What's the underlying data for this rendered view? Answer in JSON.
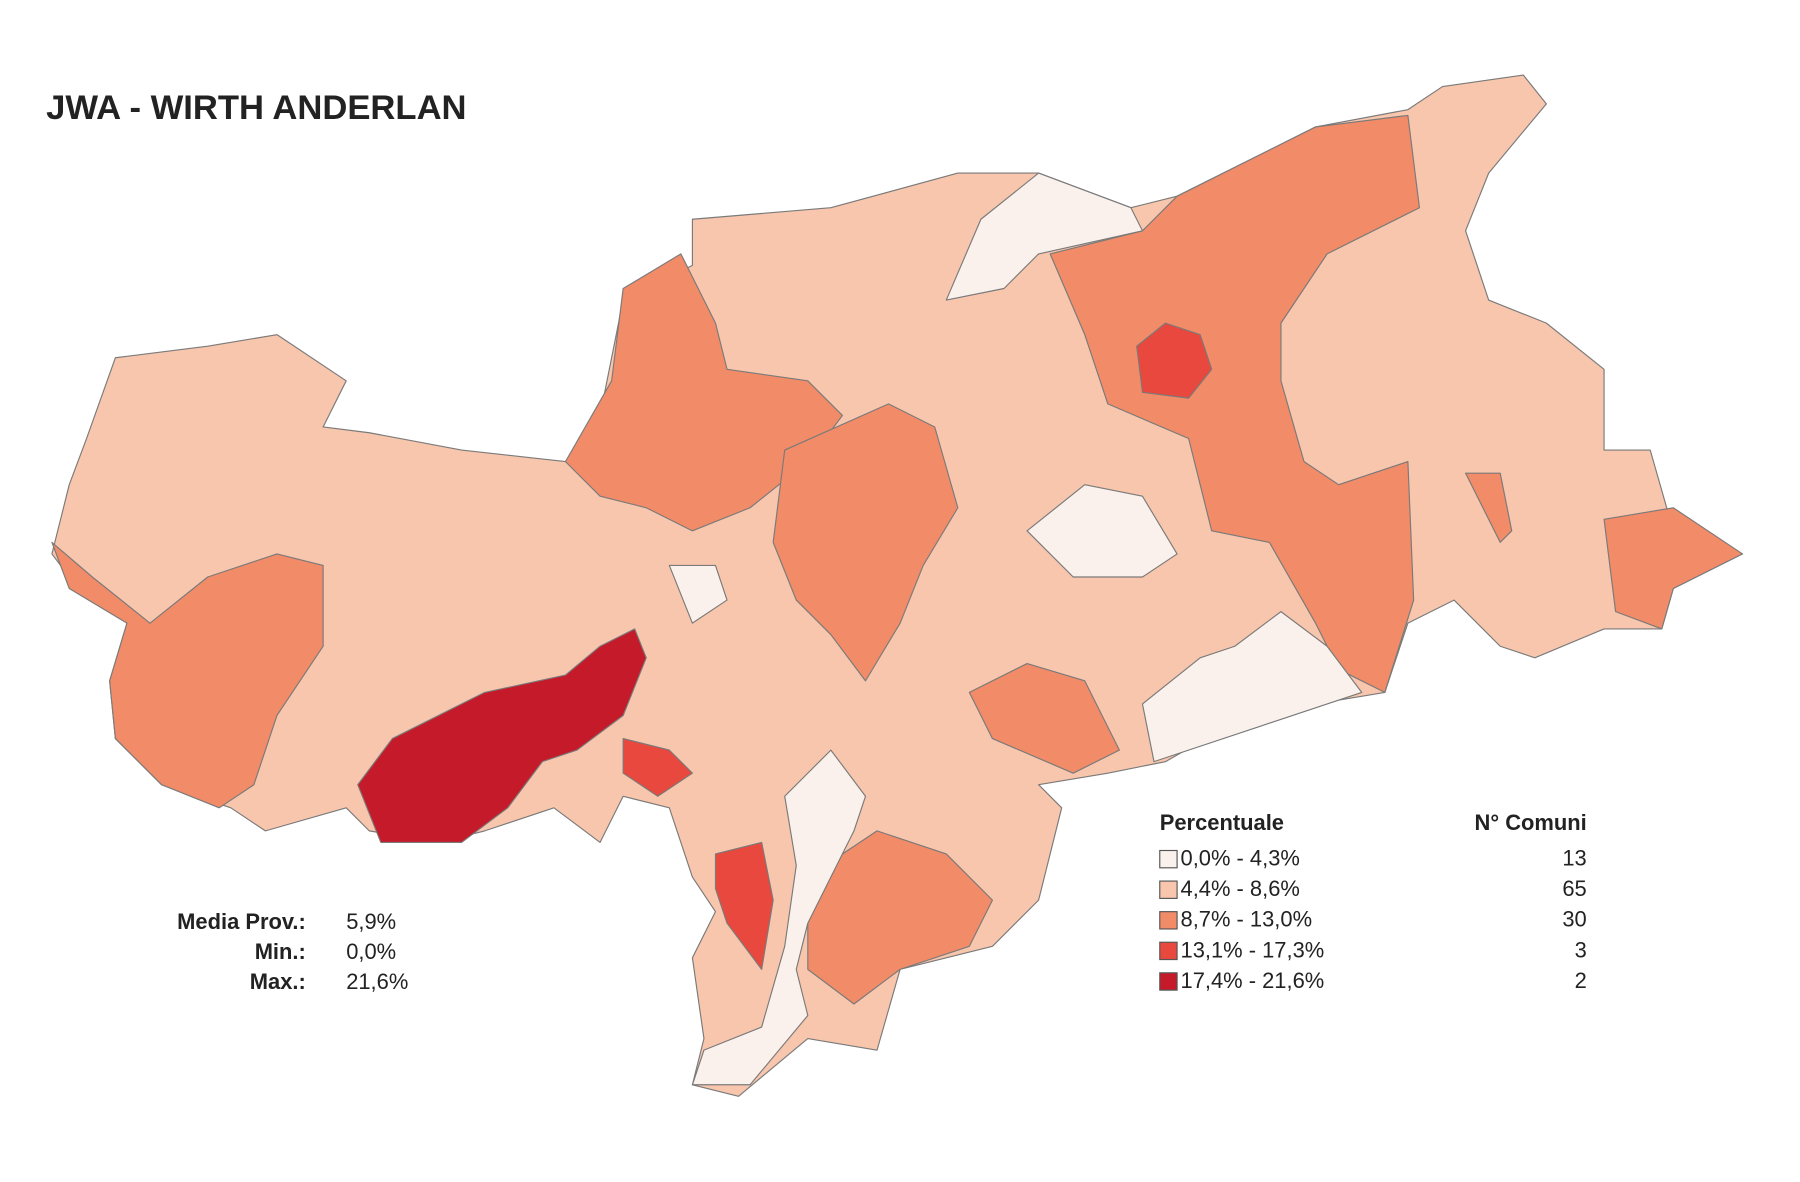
{
  "title": "JWA - WIRTH ANDERLAN",
  "stats": [
    {
      "label": "Media Prov.:",
      "value": "5,9%"
    },
    {
      "label": "Min.:",
      "value": "0,0%"
    },
    {
      "label": "Max.:",
      "value": "21,6%"
    }
  ],
  "legend": {
    "title": "Percentuale",
    "count_title": "N° Comuni",
    "classes": [
      {
        "label": "0,0% - 4,3%",
        "count": 13,
        "color": "#fbf1ec"
      },
      {
        "label": "4,4% - 8,6%",
        "count": 65,
        "color": "#f8c6ad"
      },
      {
        "label": "8,7% - 13,0%",
        "count": 30,
        "color": "#f28b67"
      },
      {
        "label": "13,1% - 17,3%",
        "count": 3,
        "color": "#e8483d"
      },
      {
        "label": "17,4% - 21,6%",
        "count": 2,
        "color": "#c41a2a"
      }
    ]
  }
}
